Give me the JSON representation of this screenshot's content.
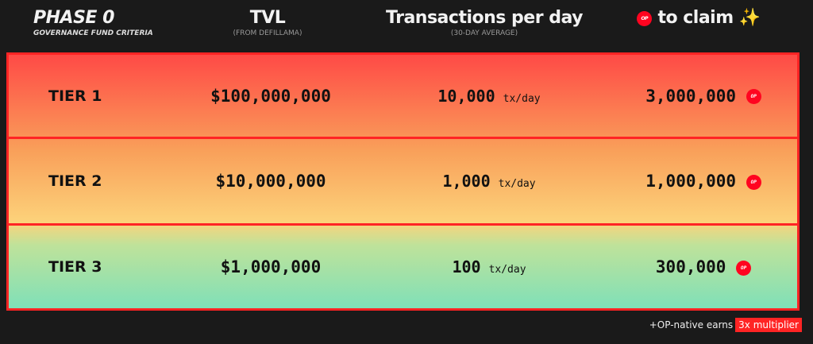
{
  "header": {
    "phase_title": "PHASE 0",
    "phase_subtitle": "GOVERNANCE FUND CRITERIA",
    "tvl_title": "TVL",
    "tvl_subtitle": "(FROM DEFILLAMA)",
    "tx_title": "Transactions per day",
    "tx_subtitle": "(30-DAY AVERAGE)",
    "claim_title": "to claim",
    "claim_emoji": "✨",
    "op_token": "OP"
  },
  "rows": [
    {
      "tier": "TIER 1",
      "tvl": "$100,000,000",
      "tx": "10,000",
      "tx_unit": "tx/day",
      "claim": "3,000,000"
    },
    {
      "tier": "TIER 2",
      "tvl": "$10,000,000",
      "tx": "1,000",
      "tx_unit": "tx/day",
      "claim": "1,000,000"
    },
    {
      "tier": "TIER 3",
      "tvl": "$1,000,000",
      "tx": "100",
      "tx_unit": "tx/day",
      "claim": "300,000"
    }
  ],
  "footer": {
    "text": "+OP-native earns",
    "highlight": "3x multiplier"
  },
  "colors": {
    "accent": "#ff2424",
    "op": "#ff0420",
    "bg": "#1a1a1a"
  }
}
